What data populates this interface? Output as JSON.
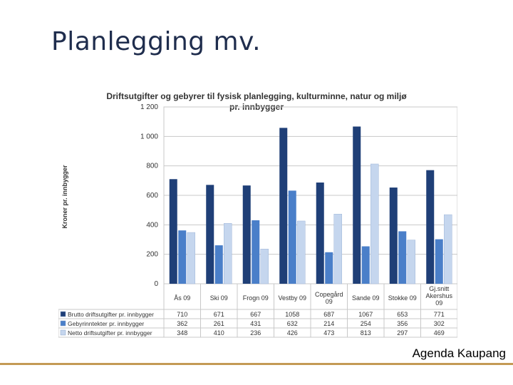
{
  "slide": {
    "title": "Planlegging mv.",
    "footer": "Agenda Kaupang"
  },
  "colors": {
    "series": [
      "#1f3f77",
      "#4a7fc9",
      "#c5d6ee"
    ],
    "grid": "#c8c8c8",
    "footer_line": "#c49a55"
  },
  "chart_data": {
    "type": "bar",
    "title_line1": "Driftsutgifter og gebyrer til fysisk planlegging, kulturminne, natur og miljø",
    "title_line2": "pr. innbygger",
    "ylabel": "Kroner pr. innbygger",
    "ylim": [
      0,
      1200
    ],
    "yticks": [
      0,
      200,
      400,
      600,
      800,
      1000,
      1200
    ],
    "ytick_labels": [
      "0",
      "200",
      "400",
      "600",
      "800",
      "1 000",
      "1 200"
    ],
    "grid": true,
    "categories": [
      [
        "Ås 09"
      ],
      [
        "Ski 09"
      ],
      [
        "Frogn 09"
      ],
      [
        "Vestby 09"
      ],
      [
        "Copegård",
        "09"
      ],
      [
        "Sande 09"
      ],
      [
        "Stokke 09"
      ],
      [
        "Gj.snitt",
        "Akershus",
        "09"
      ]
    ],
    "series": [
      {
        "name": "Brutto driftsutgifter pr. innbygger",
        "values": [
          710,
          671,
          667,
          1058,
          687,
          1067,
          653,
          771
        ]
      },
      {
        "name": "Gebyrinntekter pr. innbygger",
        "values": [
          362,
          261,
          431,
          632,
          214,
          254,
          356,
          302
        ]
      },
      {
        "name": "Netto driftsutgifter pr. innbygger",
        "values": [
          348,
          410,
          236,
          426,
          473,
          813,
          297,
          469
        ]
      }
    ],
    "legend": "data-table-below"
  }
}
